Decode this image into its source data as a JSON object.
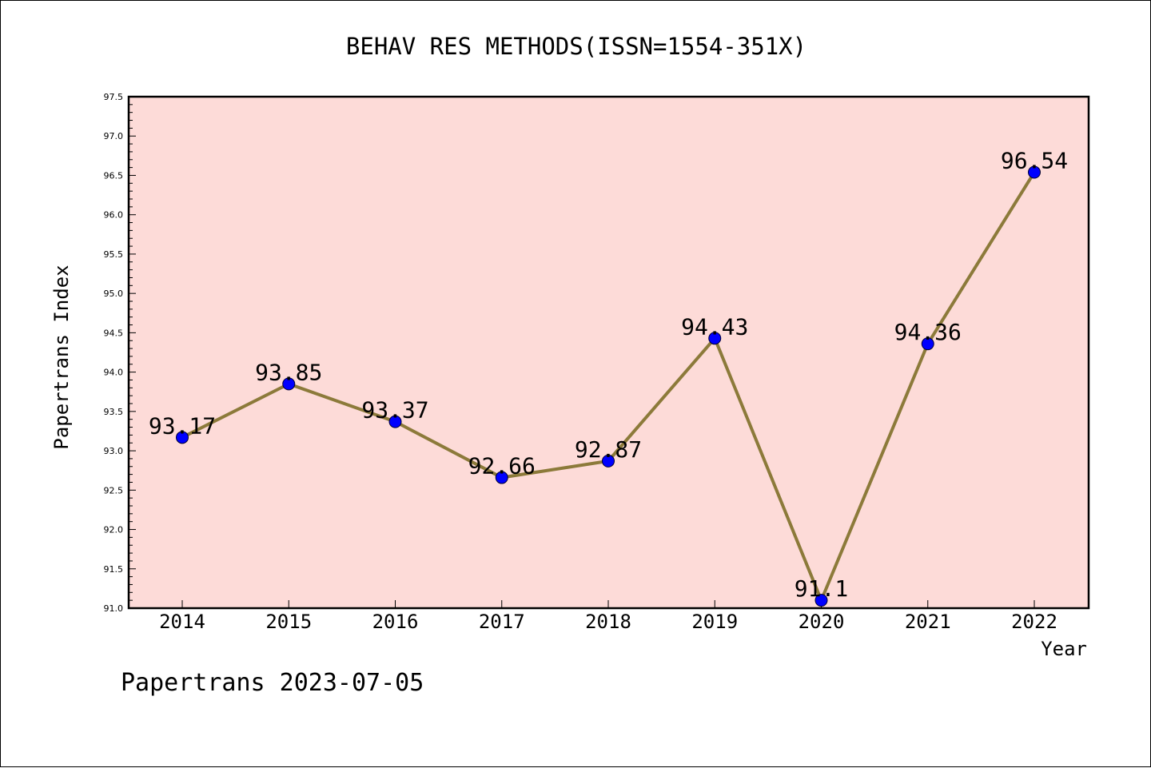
{
  "chart_data": {
    "type": "line",
    "title": "BEHAV RES METHODS(ISSN=1554-351X)",
    "xlabel": "Year",
    "ylabel": "Papertrans Index",
    "categories": [
      "2014",
      "2015",
      "2016",
      "2017",
      "2018",
      "2019",
      "2020",
      "2021",
      "2022"
    ],
    "series": [
      {
        "values": [
          93.17,
          93.85,
          93.37,
          92.66,
          92.87,
          94.43,
          91.1,
          94.36,
          96.54
        ],
        "data_labels": [
          "93.17",
          "93.85",
          "93.37",
          "92.66",
          "92.87",
          "94.43",
          "91.1",
          "94.36",
          "96.54"
        ]
      }
    ],
    "ylim": [
      91.0,
      97.5
    ],
    "yticks": [
      "91.0",
      "91.5",
      "92.0",
      "92.5",
      "93.0",
      "93.5",
      "94.0",
      "94.5",
      "95.0",
      "95.5",
      "96.0",
      "96.5",
      "97.0",
      "97.5"
    ],
    "grid": false,
    "legend": "none",
    "colors": {
      "plot_background": "#fddbd8",
      "line": "#8c7a3a",
      "marker": "#0000ff"
    }
  },
  "footer": {
    "watermark": "Papertrans 2023-07-05"
  }
}
